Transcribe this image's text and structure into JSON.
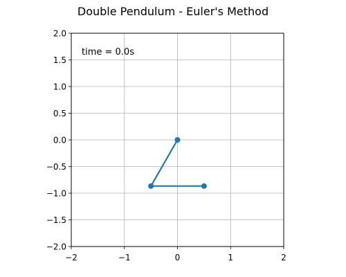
{
  "chart_data": {
    "type": "line",
    "title": "Double Pendulum - Euler's Method",
    "xlabel": "",
    "ylabel": "",
    "xlim": [
      -2,
      2
    ],
    "ylim": [
      -2,
      2
    ],
    "xticks": [
      -2,
      -1,
      0,
      1,
      2
    ],
    "yticks": [
      -2.0,
      -1.5,
      -1.0,
      -0.5,
      0.0,
      0.5,
      1.0,
      1.5,
      2.0
    ],
    "xtick_labels": [
      "−2",
      "−1",
      "0",
      "1",
      "2"
    ],
    "ytick_labels": [
      "−2.0",
      "−1.5",
      "−1.0",
      "−0.5",
      "0.0",
      "0.5",
      "1.0",
      "1.5",
      "2.0"
    ],
    "grid": true,
    "annotation": "time = 0.0s",
    "series": [
      {
        "x": [
          0.0,
          -0.5,
          0.5
        ],
        "y": [
          0.0,
          -0.866,
          -0.866
        ],
        "color": "#1f77b4",
        "marker": "o"
      }
    ]
  }
}
